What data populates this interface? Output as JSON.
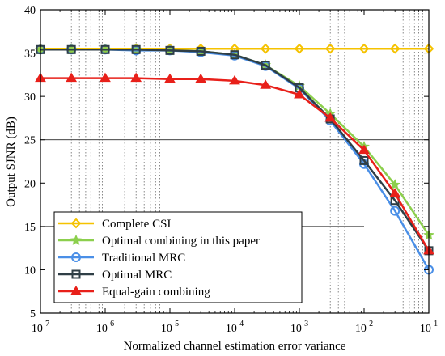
{
  "chart_data": {
    "type": "line",
    "xlabel": "Normalized channel estimation error variance",
    "ylabel": "Output SJNR (dB)",
    "xscale": "log",
    "xlim": [
      1e-07,
      0.1
    ],
    "ylim": [
      5,
      40
    ],
    "yticks": [
      5,
      10,
      15,
      20,
      25,
      30,
      35,
      40
    ],
    "xtick_labels": [
      {
        "base": "10",
        "exp": "-7"
      },
      {
        "base": "10",
        "exp": "-6"
      },
      {
        "base": "10",
        "exp": "-5"
      },
      {
        "base": "10",
        "exp": "-4"
      },
      {
        "base": "10",
        "exp": "-3"
      },
      {
        "base": "10",
        "exp": "-2"
      },
      {
        "base": "10",
        "exp": "-1"
      }
    ],
    "x": [
      1e-07,
      3e-07,
      1e-06,
      3e-06,
      1e-05,
      3e-05,
      0.0001,
      0.0003,
      0.001,
      0.003,
      0.01,
      0.03,
      0.1
    ],
    "grid": "partial",
    "legend_position": "bottom-left",
    "series": [
      {
        "name": "Complete CSI",
        "color": "#f5c200",
        "marker": "diamond",
        "values": [
          35.5,
          35.5,
          35.5,
          35.5,
          35.5,
          35.5,
          35.5,
          35.5,
          35.5,
          35.5,
          35.5,
          35.5,
          35.5
        ]
      },
      {
        "name": "Optimal combining in this paper",
        "color": "#8ccf4d",
        "marker": "star",
        "values": [
          35.4,
          35.4,
          35.4,
          35.4,
          35.3,
          35.2,
          34.8,
          33.6,
          31.2,
          28.0,
          24.2,
          19.8,
          14.0
        ]
      },
      {
        "name": "Traditional MRC",
        "color": "#4a8fe7",
        "marker": "circle",
        "values": [
          35.4,
          35.4,
          35.4,
          35.3,
          35.3,
          35.1,
          34.7,
          33.5,
          30.9,
          27.2,
          22.2,
          16.8,
          10.0
        ]
      },
      {
        "name": "Optimal MRC",
        "color": "#2f3e46",
        "marker": "square",
        "values": [
          35.4,
          35.4,
          35.4,
          35.4,
          35.3,
          35.2,
          34.8,
          33.6,
          31.0,
          27.4,
          22.6,
          18.0,
          12.2
        ]
      },
      {
        "name": "Equal-gain combining",
        "color": "#e8201a",
        "marker": "triangle",
        "values": [
          32.1,
          32.1,
          32.1,
          32.1,
          32.0,
          32.0,
          31.8,
          31.3,
          30.2,
          27.5,
          23.8,
          18.8,
          12.2
        ]
      }
    ]
  }
}
